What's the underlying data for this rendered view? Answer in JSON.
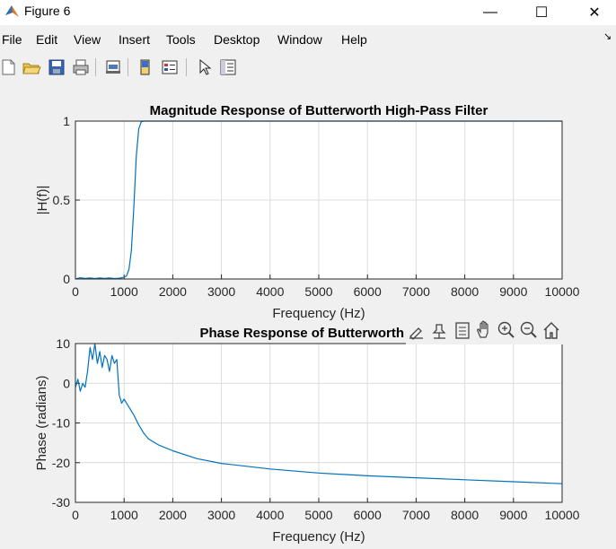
{
  "window": {
    "title": "Figure 6",
    "icon": "matlab-icon",
    "minimize": "—",
    "maximize": "☐",
    "close": "✕"
  },
  "menu": [
    "File",
    "Edit",
    "View",
    "Insert",
    "Tools",
    "Desktop",
    "Window",
    "Help"
  ],
  "menu_tail": "↘",
  "toolbar": [
    "new-figure-icon",
    "open-file-icon",
    "save-icon",
    "print-icon",
    "link-plot-icon",
    "insert-colorbar-icon",
    "insert-legend-icon",
    "edit-plot-icon",
    "property-inspector-icon"
  ],
  "axes_toolbar": [
    "brush-icon",
    "data-tips-icon",
    "export-icon",
    "pan-icon",
    "zoom-in-icon",
    "zoom-out-icon",
    "home-icon"
  ],
  "chart_data": [
    {
      "type": "line",
      "title": "Magnitude Response of Butterworth High-Pass Filter",
      "xlabel": "Frequency (Hz)",
      "ylabel": "|H(f)|",
      "xlim": [
        0,
        10000
      ],
      "ylim": [
        0,
        1
      ],
      "xticks": [
        "0",
        "1000",
        "2000",
        "3000",
        "4000",
        "5000",
        "6000",
        "7000",
        "8000",
        "9000",
        "10000"
      ],
      "yticks": [
        "0",
        "0.5",
        "1"
      ],
      "grid": true,
      "color": "#0072bd",
      "x": [
        0,
        100,
        200,
        300,
        400,
        500,
        600,
        700,
        800,
        900,
        1000,
        1050,
        1100,
        1150,
        1200,
        1250,
        1300,
        1350,
        1400,
        1500,
        2000,
        4000,
        6000,
        8000,
        10000
      ],
      "y": [
        0.0,
        0.008,
        0.004,
        0.007,
        0.003,
        0.006,
        0.004,
        0.007,
        0.003,
        0.005,
        0.01,
        0.02,
        0.06,
        0.18,
        0.45,
        0.78,
        0.95,
        0.995,
        1.0,
        1.0,
        1.0,
        1.0,
        1.0,
        1.0,
        1.0
      ]
    },
    {
      "type": "line",
      "title": "Phase Response of Butterworth High",
      "xlabel": "Frequency (Hz)",
      "ylabel": "Phase (radians)",
      "xlim": [
        0,
        10000
      ],
      "ylim": [
        -30,
        10
      ],
      "xticks": [
        "0",
        "1000",
        "2000",
        "3000",
        "4000",
        "5000",
        "6000",
        "7000",
        "8000",
        "9000",
        "10000"
      ],
      "yticks": [
        "10",
        "0",
        "-10",
        "-20",
        "-30"
      ],
      "grid": true,
      "color": "#0072bd",
      "x": [
        0,
        50,
        100,
        150,
        200,
        250,
        300,
        350,
        400,
        450,
        500,
        550,
        600,
        650,
        700,
        750,
        800,
        850,
        900,
        950,
        1000,
        1100,
        1200,
        1300,
        1400,
        1500,
        1700,
        2000,
        2500,
        3000,
        4000,
        5000,
        6000,
        7000,
        8000,
        9000,
        10000
      ],
      "y": [
        -1,
        1,
        -2,
        0,
        -1,
        3,
        9,
        6,
        10,
        5,
        8,
        4,
        7,
        6,
        3,
        7,
        5,
        6,
        -3,
        -5,
        -4,
        -6,
        -8,
        -10.5,
        -12.5,
        -14,
        -15.5,
        -17,
        -19,
        -20.2,
        -21.6,
        -22.6,
        -23.3,
        -23.8,
        -24.3,
        -24.8,
        -25.3
      ]
    }
  ]
}
